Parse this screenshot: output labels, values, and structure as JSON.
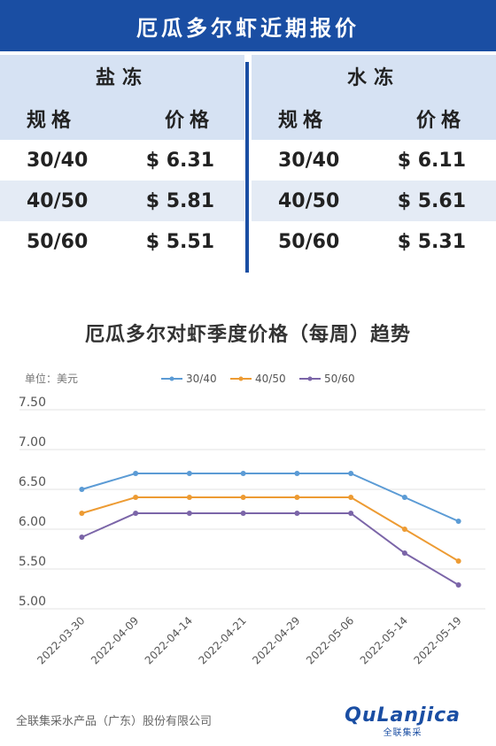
{
  "header": {
    "title": "厄瓜多尔虾近期报价"
  },
  "tables": [
    {
      "category": "盐冻",
      "col_headers": [
        "规格",
        "价格"
      ],
      "rows": [
        [
          "30/40",
          "$ 6.31"
        ],
        [
          "40/50",
          "$ 5.81"
        ],
        [
          "50/60",
          "$ 5.51"
        ]
      ]
    },
    {
      "category": "水冻",
      "col_headers": [
        "规格",
        "价格"
      ],
      "rows": [
        [
          "30/40",
          "$ 6.11"
        ],
        [
          "40/50",
          "$ 5.61"
        ],
        [
          "50/60",
          "$ 5.31"
        ]
      ]
    }
  ],
  "chart_data": {
    "type": "line",
    "title": "厄瓜多尔对虾季度价格（每周）趋势",
    "unit_label": "单位：美元",
    "x": [
      "2022-03-30",
      "2022-04-09",
      "2022-04-14",
      "2022-04-21",
      "2022-04-29",
      "2022-05-06",
      "2022-05-14",
      "2022-05-19"
    ],
    "series": [
      {
        "name": "30/40",
        "color": "#5b9bd5",
        "values": [
          6.5,
          6.7,
          6.7,
          6.7,
          6.7,
          6.7,
          6.4,
          6.1
        ]
      },
      {
        "name": "40/50",
        "color": "#ed9b33",
        "values": [
          6.2,
          6.4,
          6.4,
          6.4,
          6.4,
          6.4,
          6.0,
          5.6
        ]
      },
      {
        "name": "50/60",
        "color": "#7b65a8",
        "values": [
          5.9,
          6.2,
          6.2,
          6.2,
          6.2,
          6.2,
          5.7,
          5.3
        ]
      }
    ],
    "yticks": [
      "7.50",
      "7.00",
      "6.50",
      "6.00",
      "5.50",
      "5.00"
    ],
    "ylim": [
      5.0,
      7.5
    ],
    "grid": true,
    "legend_position": "top"
  },
  "footer": {
    "company": "全联集采水产品（广东）股份有限公司"
  },
  "brand": {
    "name": "QuLanjica",
    "sub": "全联集采"
  }
}
